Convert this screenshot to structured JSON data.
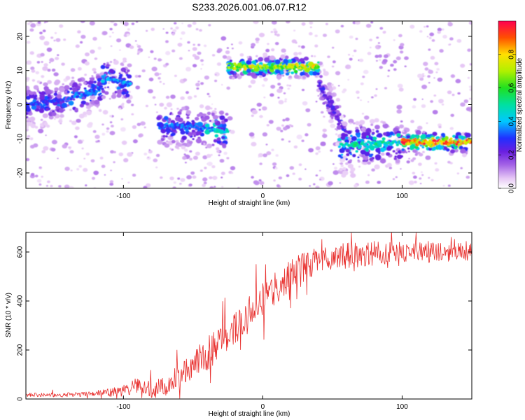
{
  "title": "S233.2026.001.06.07.R12",
  "colors": {
    "axis": "#000000",
    "snr_line": "#e8302e",
    "background": "#ffffff"
  },
  "chart_data": [
    {
      "type": "heatmap",
      "name": "spectrogram",
      "xlabel": "Height of straight line (km)",
      "ylabel": "Frequency (Hz)",
      "xlim": [
        -170,
        150
      ],
      "ylim": [
        -24.5,
        24.5
      ],
      "xticks": [
        -100,
        0,
        100
      ],
      "yticks": [
        -20,
        -10,
        0,
        10,
        20
      ],
      "colorbar": {
        "label": "Normalized spectral amplitude",
        "range": [
          0,
          1
        ],
        "ticks": [
          "0.0",
          "0.2",
          "0.4",
          "0.6",
          "0.8"
        ],
        "tick_values": [
          0.0,
          0.2,
          0.4,
          0.6,
          0.8
        ]
      },
      "ridge_segments": [
        {
          "x0": -170,
          "x1": -140,
          "f0": 0,
          "f1": 1.5,
          "amp": 0.32
        },
        {
          "x0": -140,
          "x1": -115,
          "f0": 1.5,
          "f1": 5,
          "amp": 0.35
        },
        {
          "x0": -115,
          "x1": -95,
          "f0": 8,
          "f1": 6,
          "amp": 0.4
        },
        {
          "x0": -75,
          "x1": -40,
          "f0": -6,
          "f1": -7,
          "amp": 0.35
        },
        {
          "x0": -40,
          "x1": -25,
          "f0": -7,
          "f1": -8,
          "amp": 0.45
        },
        {
          "x0": -25,
          "x1": 40,
          "f0": 11,
          "f1": 11,
          "amp": 0.75
        },
        {
          "x0": 40,
          "x1": 60,
          "f0": 6,
          "f1": -8,
          "amp": 0.25
        },
        {
          "x0": 55,
          "x1": 100,
          "f0": -12,
          "f1": -11,
          "amp": 0.5
        },
        {
          "x0": 100,
          "x1": 150,
          "f0": -11,
          "f1": -11,
          "amp": 0.9
        }
      ]
    },
    {
      "type": "line",
      "name": "snr",
      "xlabel": "Height of straight line (km)",
      "ylabel": "SNR (10 * v/v)",
      "xlim": [
        -170,
        150
      ],
      "ylim": [
        0,
        680
      ],
      "xticks": [
        -100,
        0,
        100
      ],
      "yticks": [
        0,
        200,
        400,
        600
      ],
      "trend_x": [
        -170,
        -140,
        -120,
        -100,
        -90,
        -80,
        -70,
        -60,
        -50,
        -40,
        -30,
        -20,
        -10,
        0,
        10,
        20,
        30,
        40,
        50,
        60,
        80,
        100,
        120,
        150
      ],
      "trend_y": [
        18,
        18,
        22,
        35,
        60,
        45,
        50,
        100,
        150,
        190,
        230,
        300,
        360,
        410,
        470,
        520,
        550,
        570,
        585,
        590,
        600,
        605,
        605,
        610
      ],
      "noise_x": [
        -170,
        -120,
        -100,
        -60,
        -40,
        -20,
        0,
        20,
        40,
        80,
        150
      ],
      "noise_y": [
        8,
        10,
        25,
        50,
        70,
        80,
        80,
        70,
        55,
        50,
        40
      ],
      "samples": 800
    }
  ]
}
